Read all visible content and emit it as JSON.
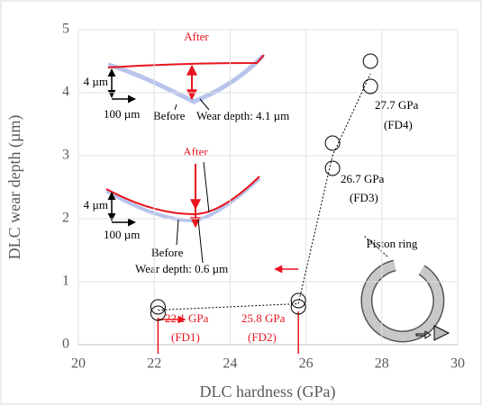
{
  "chart_data": {
    "type": "scatter",
    "x_label": "DLC hardness (GPa)",
    "y_label": "DLC wear depth (µm)",
    "series": [
      {
        "name": "DLC",
        "color": "#000000",
        "x": [
          22.1,
          22.1,
          25.8,
          25.8,
          26.7,
          26.7,
          27.7,
          27.7
        ],
        "values": [
          0.6,
          0.5,
          0.7,
          0.6,
          3.2,
          2.8,
          4.5,
          4.1
        ]
      }
    ],
    "xlim": [
      20,
      30
    ],
    "xticks": [
      20,
      22,
      24,
      26,
      28,
      30
    ],
    "ylim": [
      0,
      5
    ],
    "yticks": [
      0,
      1,
      2,
      3,
      4,
      5
    ],
    "grid": true,
    "point_labels": [
      "22.1 GPa",
      "(FD1)",
      "25.8 GPa",
      "(FD2)",
      "26.7 GPa",
      "(FD3)",
      "27.7 GPa",
      "(FD4)"
    ],
    "inset_top": {
      "after": "After",
      "scale_y": "4 µm",
      "scale_x": "100 µm",
      "before": "Before",
      "depth": "Wear depth: 4.1 µm"
    },
    "inset_bottom": {
      "after": "After",
      "scale_y": "4 µm",
      "scale_x": "100 µm",
      "before": "Before",
      "depth": "Wear depth: 0.6 µm"
    },
    "ring_label": "Piston ring"
  }
}
